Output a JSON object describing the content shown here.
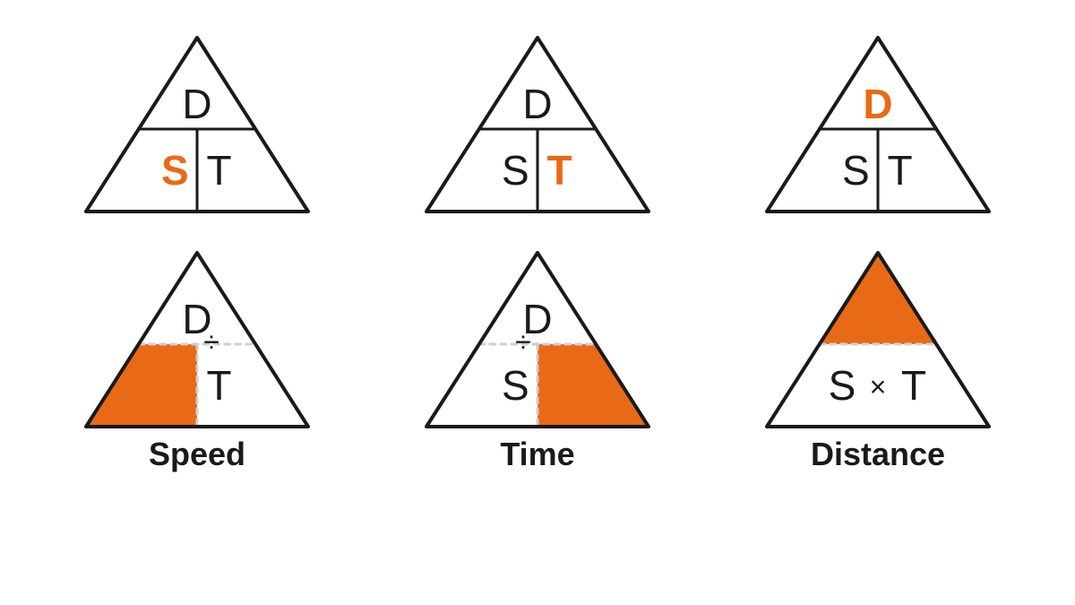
{
  "colors": {
    "stroke": "#1a1a1a",
    "accent": "#e86a17",
    "dashed": "#cfcfcf",
    "bg": "#ffffff",
    "text": "#1a1a1a"
  },
  "geometry": {
    "tri_width": 260,
    "tri_height": 200,
    "outline_width": 4,
    "divider_width": 3,
    "dashed_width": 3,
    "dashed_pattern": "6,6",
    "font_family": "Arial",
    "letter_fontsize": 46,
    "letter_weight_normal": 500,
    "letter_weight_highlight": 700,
    "caption_fontsize": 36,
    "caption_weight": 700,
    "operator_fontsize": 32
  },
  "letters": {
    "top": "D",
    "left": "S",
    "right": "T"
  },
  "operators": {
    "divide": "÷",
    "multiply": "×"
  },
  "captions": [
    "Speed",
    "Time",
    "Distance"
  ],
  "triangles": [
    {
      "id": "speed-highlight",
      "top": {
        "text": "D",
        "highlight": false,
        "fill": false
      },
      "left": {
        "text": "S",
        "highlight": true,
        "fill": false
      },
      "right": {
        "text": "T",
        "highlight": false,
        "fill": false
      },
      "dividers": "solid",
      "operator": null,
      "caption": null
    },
    {
      "id": "time-highlight",
      "top": {
        "text": "D",
        "highlight": false,
        "fill": false
      },
      "left": {
        "text": "S",
        "highlight": false,
        "fill": false
      },
      "right": {
        "text": "T",
        "highlight": true,
        "fill": false
      },
      "dividers": "solid",
      "operator": null,
      "caption": null
    },
    {
      "id": "distance-highlight",
      "top": {
        "text": "D",
        "highlight": true,
        "fill": false
      },
      "left": {
        "text": "S",
        "highlight": false,
        "fill": false
      },
      "right": {
        "text": "T",
        "highlight": false,
        "fill": false
      },
      "dividers": "solid",
      "operator": null,
      "caption": null
    },
    {
      "id": "speed-formula",
      "top": {
        "text": "D",
        "highlight": false,
        "fill": false
      },
      "left": {
        "text": "",
        "highlight": false,
        "fill": true
      },
      "right": {
        "text": "T",
        "highlight": false,
        "fill": false
      },
      "dividers": "dashed",
      "operator": "divide",
      "operator_side": "right",
      "caption": "Speed"
    },
    {
      "id": "time-formula",
      "top": {
        "text": "D",
        "highlight": false,
        "fill": false
      },
      "left": {
        "text": "S",
        "highlight": false,
        "fill": false
      },
      "right": {
        "text": "",
        "highlight": false,
        "fill": true
      },
      "dividers": "dashed",
      "operator": "divide",
      "operator_side": "left",
      "caption": "Time"
    },
    {
      "id": "distance-formula",
      "top": {
        "text": "",
        "highlight": false,
        "fill": true
      },
      "left": {
        "text": "S",
        "highlight": false,
        "fill": false
      },
      "right": {
        "text": "T",
        "highlight": false,
        "fill": false
      },
      "dividers": "dashed",
      "operator": "multiply",
      "operator_side": "center",
      "caption": "Distance",
      "bottom_combined": true
    }
  ]
}
